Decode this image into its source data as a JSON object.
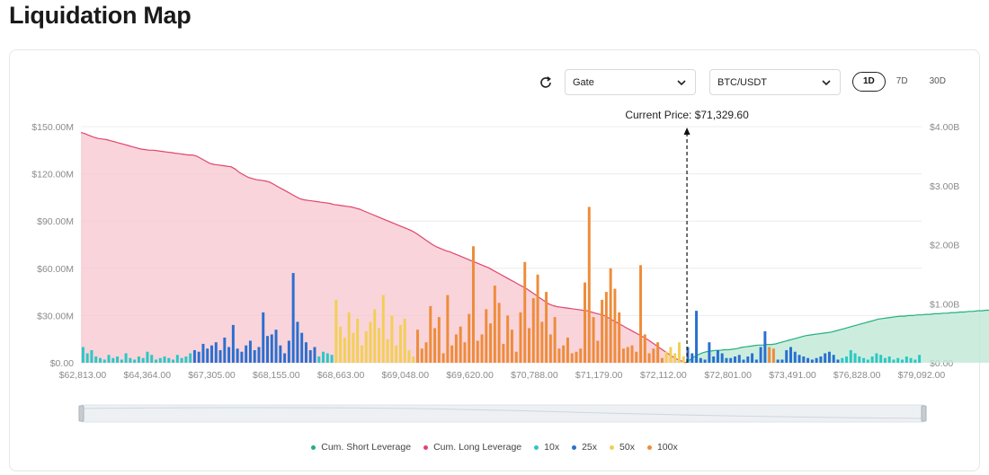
{
  "page": {
    "title": "Liquidation Map"
  },
  "controls": {
    "exchange": "Gate",
    "pair": "BTC/USDT",
    "ranges": [
      {
        "label": "1D",
        "active": true
      },
      {
        "label": "7D",
        "active": false
      },
      {
        "label": "30D",
        "active": false
      }
    ]
  },
  "colors": {
    "short": "#22b07d",
    "long": "#e0466a",
    "lev10": "#2cc7c4",
    "lev25": "#2a6fd0",
    "lev50": "#f2cf55",
    "lev100": "#ee8c3a"
  },
  "legend": [
    {
      "label": "Cum. Short Leverage",
      "color_key": "short"
    },
    {
      "label": "Cum. Long Leverage",
      "color_key": "long"
    },
    {
      "label": "10x",
      "color_key": "lev10"
    },
    {
      "label": "25x",
      "color_key": "lev25"
    },
    {
      "label": "50x",
      "color_key": "lev50"
    },
    {
      "label": "100x",
      "color_key": "lev100"
    }
  ],
  "chart_data": {
    "type": "bar",
    "current_price_label": "Current Price: $71,329.60",
    "current_price_index": 141,
    "left_axis": {
      "ticks": [
        "$0.00",
        "$30.00M",
        "$60.00M",
        "$90.00M",
        "$120.00M",
        "$150.00M"
      ],
      "ylim": [
        0,
        150
      ]
    },
    "right_axis": {
      "ticks": [
        "$0.00",
        "$1.00B",
        "$2.00B",
        "$3.00B",
        "$4.00B"
      ],
      "ylim": [
        0,
        4
      ]
    },
    "x_tick_labels": [
      "$62,813.00",
      "$64,364.00",
      "$67,305.00",
      "$68,155.00",
      "$68,663.00",
      "$69,048.00",
      "$69,620.00",
      "$70,788.00",
      "$71,179.00",
      "$72,112.00",
      "$72,801.00",
      "$73,491.00",
      "$76,828.00",
      "$79,092.00"
    ],
    "bars_millions": [
      10,
      6,
      8,
      4,
      3,
      2,
      5,
      3,
      4,
      2,
      6,
      3,
      2,
      4,
      3,
      7,
      5,
      2,
      3,
      4,
      3,
      2,
      5,
      3,
      4,
      6,
      8,
      7,
      12,
      9,
      11,
      13,
      8,
      16,
      10,
      24,
      9,
      7,
      11,
      14,
      8,
      10,
      32,
      17,
      18,
      21,
      11,
      6,
      14,
      57,
      26,
      19,
      13,
      8,
      10,
      4,
      7,
      6,
      5,
      40,
      23,
      16,
      32,
      19,
      28,
      11,
      20,
      26,
      34,
      22,
      43,
      15,
      30,
      11,
      24,
      28,
      8,
      4,
      21,
      9,
      13,
      36,
      22,
      29,
      6,
      43,
      11,
      18,
      23,
      13,
      31,
      74,
      14,
      18,
      34,
      25,
      49,
      38,
      12,
      30,
      21,
      7,
      32,
      64,
      22,
      41,
      56,
      26,
      45,
      18,
      29,
      9,
      11,
      16,
      6,
      7,
      9,
      51,
      99,
      29,
      14,
      40,
      45,
      60,
      47,
      32,
      9,
      10,
      11,
      7,
      62,
      18,
      6,
      9,
      13,
      3,
      7,
      10,
      6,
      13,
      4,
      10,
      6,
      33,
      3,
      2,
      13,
      4,
      8,
      6,
      3,
      3,
      4,
      5,
      2,
      4,
      6,
      2,
      10,
      20,
      10,
      9,
      2,
      2,
      8,
      10,
      7,
      5,
      4,
      3,
      2,
      3,
      4,
      6,
      7,
      5,
      2,
      3,
      4,
      8,
      6,
      4,
      3,
      2,
      4,
      6,
      5,
      3,
      4,
      2,
      3,
      2,
      4,
      3,
      2,
      5
    ],
    "bar_leverage": [
      "10x",
      "10x",
      "10x",
      "10x",
      "10x",
      "10x",
      "10x",
      "10x",
      "10x",
      "10x",
      "10x",
      "10x",
      "10x",
      "10x",
      "10x",
      "10x",
      "10x",
      "10x",
      "10x",
      "10x",
      "10x",
      "10x",
      "10x",
      "10x",
      "10x",
      "10x",
      "25x",
      "25x",
      "25x",
      "25x",
      "25x",
      "25x",
      "25x",
      "25x",
      "25x",
      "25x",
      "25x",
      "25x",
      "25x",
      "25x",
      "25x",
      "25x",
      "25x",
      "25x",
      "25x",
      "25x",
      "25x",
      "25x",
      "25x",
      "25x",
      "25x",
      "25x",
      "25x",
      "25x",
      "25x",
      "10x",
      "10x",
      "10x",
      "10x",
      "50x",
      "50x",
      "50x",
      "50x",
      "50x",
      "50x",
      "50x",
      "50x",
      "50x",
      "50x",
      "50x",
      "50x",
      "50x",
      "50x",
      "50x",
      "50x",
      "50x",
      "50x",
      "50x",
      "100x",
      "100x",
      "100x",
      "100x",
      "100x",
      "100x",
      "100x",
      "100x",
      "100x",
      "100x",
      "100x",
      "100x",
      "100x",
      "100x",
      "100x",
      "100x",
      "100x",
      "100x",
      "100x",
      "100x",
      "100x",
      "100x",
      "100x",
      "100x",
      "100x",
      "100x",
      "100x",
      "100x",
      "100x",
      "100x",
      "100x",
      "100x",
      "100x",
      "100x",
      "100x",
      "100x",
      "100x",
      "100x",
      "100x",
      "100x",
      "100x",
      "100x",
      "100x",
      "100x",
      "100x",
      "100x",
      "100x",
      "100x",
      "100x",
      "100x",
      "100x",
      "100x",
      "100x",
      "100x",
      "100x",
      "100x",
      "100x",
      "100x",
      "50x",
      "50x",
      "50x",
      "50x",
      "50x",
      "25x",
      "25x",
      "25x",
      "25x",
      "25x",
      "25x",
      "25x",
      "25x",
      "25x",
      "25x",
      "25x",
      "25x",
      "25x",
      "25x",
      "25x",
      "25x",
      "25x",
      "25x",
      "25x",
      "100x",
      "100x",
      "25x",
      "25x",
      "25x",
      "25x",
      "25x",
      "25x",
      "25x",
      "25x",
      "25x",
      "25x",
      "25x",
      "25x",
      "25x",
      "25x",
      "25x",
      "10x",
      "10x",
      "10x",
      "10x",
      "10x",
      "10x",
      "10x",
      "10x",
      "10x",
      "10x",
      "10x",
      "10x",
      "10x",
      "10x",
      "10x",
      "10x",
      "10x",
      "10x",
      "10x",
      "10x",
      "10x",
      "10x",
      "10x",
      "10x"
    ],
    "cum_long_billions": [
      3.9,
      3.88,
      3.85,
      3.82,
      3.8,
      3.79,
      3.78,
      3.76,
      3.74,
      3.72,
      3.7,
      3.68,
      3.66,
      3.64,
      3.62,
      3.61,
      3.6,
      3.6,
      3.59,
      3.58,
      3.57,
      3.56,
      3.55,
      3.54,
      3.53,
      3.52,
      3.52,
      3.5,
      3.46,
      3.42,
      3.38,
      3.36,
      3.35,
      3.34,
      3.33,
      3.32,
      3.28,
      3.22,
      3.18,
      3.14,
      3.12,
      3.1,
      3.09,
      3.08,
      3.06,
      3.02,
      2.98,
      2.94,
      2.9,
      2.86,
      2.82,
      2.78,
      2.76,
      2.75,
      2.74,
      2.73,
      2.72,
      2.71,
      2.7,
      2.68,
      2.67,
      2.66,
      2.65,
      2.64,
      2.62,
      2.6,
      2.57,
      2.54,
      2.51,
      2.48,
      2.45,
      2.42,
      2.39,
      2.36,
      2.33,
      2.3,
      2.27,
      2.24,
      2.2,
      2.15,
      2.1,
      2.05,
      2.0,
      1.96,
      1.93,
      1.9,
      1.88,
      1.85,
      1.82,
      1.79,
      1.76,
      1.73,
      1.7,
      1.67,
      1.64,
      1.61,
      1.57,
      1.53,
      1.49,
      1.45,
      1.41,
      1.37,
      1.33,
      1.29,
      1.25,
      1.2,
      1.15,
      1.1,
      1.05,
      1.0,
      0.97,
      0.95,
      0.94,
      0.93,
      0.92,
      0.91,
      0.9,
      0.89,
      0.88,
      0.86,
      0.84,
      0.82,
      0.8,
      0.76,
      0.72,
      0.68,
      0.64,
      0.6,
      0.56,
      0.52,
      0.48,
      0.44,
      0.4,
      0.35,
      0.3,
      0.25,
      0.2,
      0.15,
      0.1,
      0.06,
      0.03,
      0.0
    ],
    "cum_short_billions": [
      0.0,
      0.05,
      0.1,
      0.14,
      0.17,
      0.19,
      0.2,
      0.21,
      0.21,
      0.22,
      0.22,
      0.23,
      0.24,
      0.26,
      0.27,
      0.28,
      0.29,
      0.3,
      0.3,
      0.31,
      0.31,
      0.32,
      0.34,
      0.36,
      0.38,
      0.4,
      0.42,
      0.44,
      0.46,
      0.47,
      0.48,
      0.49,
      0.5,
      0.51,
      0.52,
      0.54,
      0.56,
      0.58,
      0.6,
      0.62,
      0.64,
      0.66,
      0.68,
      0.7,
      0.72,
      0.74,
      0.75,
      0.76,
      0.77,
      0.78,
      0.79,
      0.79,
      0.8,
      0.8,
      0.81,
      0.81,
      0.82,
      0.82,
      0.83,
      0.83,
      0.84,
      0.84,
      0.85,
      0.85,
      0.86,
      0.86,
      0.87,
      0.87,
      0.88,
      0.88,
      0.89,
      0.89,
      0.9,
      0.9,
      0.91,
      0.91,
      0.92,
      0.92,
      0.93,
      0.93,
      0.94,
      0.94,
      0.95,
      0.96
    ]
  }
}
